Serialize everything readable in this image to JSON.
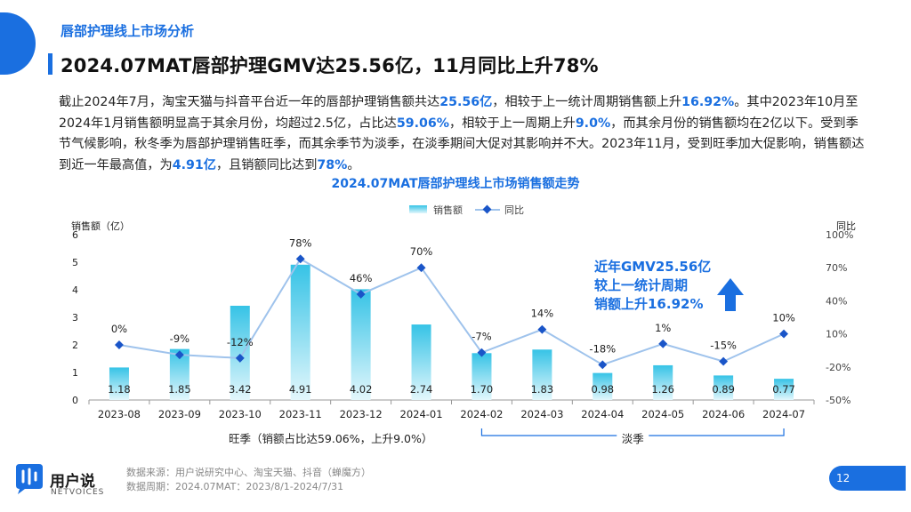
{
  "header": {
    "section_label": "唇部护理线上市场分析",
    "headline": "2024.07MAT唇部护理GMV达25.56亿，11月同比上升78%"
  },
  "paragraph": [
    {
      "t": "截止2024年7月，淘宝天猫与抖音平台近一年的唇部护理销售额共达",
      "h": false
    },
    {
      "t": "25.56亿",
      "h": true
    },
    {
      "t": "，相较于上一统计周期销售额上升",
      "h": false
    },
    {
      "t": "16.92%",
      "h": true
    },
    {
      "t": "。其中2023年10月至2024年1月销售额明显高于其余月份，均超过2.5亿，占比达",
      "h": false
    },
    {
      "t": "59.06%",
      "h": true
    },
    {
      "t": "，相较于上一周期上升",
      "h": false
    },
    {
      "t": "9.0%",
      "h": true
    },
    {
      "t": "，而其余月份的销售额均在2亿以下。受到季节气候影响，秋冬季为唇部护理销售旺季，而其余季节为淡季，在淡季期间大促对其影响并不大。2023年11月，受到旺季加大促影响，销售额达到近一年最高值，为",
      "h": false
    },
    {
      "t": "4.91亿",
      "h": true
    },
    {
      "t": "，且销额同比达到",
      "h": false
    },
    {
      "t": "78%",
      "h": true
    },
    {
      "t": "。",
      "h": false
    }
  ],
  "chart_data": {
    "type": "bar",
    "title": "2024.07MAT唇部护理线上市场销售额走势",
    "categories": [
      "2023-08",
      "2023-09",
      "2023-10",
      "2023-11",
      "2023-12",
      "2024-01",
      "2024-02",
      "2024-03",
      "2024-04",
      "2024-05",
      "2024-06",
      "2024-07"
    ],
    "series": [
      {
        "name": "销售额",
        "type": "bar",
        "axis": "left",
        "values": [
          1.18,
          1.85,
          3.42,
          4.91,
          4.02,
          2.74,
          1.7,
          1.83,
          0.98,
          1.26,
          0.89,
          0.77
        ],
        "labels": [
          "1.18",
          "1.85",
          "3.42",
          "4.91",
          "4.02",
          "2.74",
          "1.70",
          "1.83",
          "0.98",
          "1.26",
          "0.89",
          "0.77"
        ]
      },
      {
        "name": "同比",
        "type": "line",
        "axis": "right",
        "values": [
          0,
          -9,
          -12,
          78,
          46,
          70,
          -7,
          14,
          -18,
          1,
          -15,
          10
        ],
        "labels": [
          "0%",
          "-9%",
          "-12%",
          "78%",
          "46%",
          "70%",
          "-7%",
          "14%",
          "-18%",
          "1%",
          "-15%",
          "10%"
        ]
      }
    ],
    "ylabel_left": "销售额（亿）",
    "ylabel_right": "同比",
    "ylim_left": [
      0,
      6
    ],
    "yticks_left": [
      "0",
      "1",
      "2",
      "3",
      "4",
      "5",
      "6"
    ],
    "ylim_right": [
      -50,
      100
    ],
    "yticks_right": [
      "-50%",
      "-20%",
      "10%",
      "40%",
      "70%",
      "100%"
    ],
    "yticks_right_values": [
      -50,
      -20,
      10,
      40,
      70,
      100
    ],
    "legend": "top-center",
    "grid": false,
    "annotations": [
      {
        "text": "旺季（销额占比达59.06%，上升9.0%）",
        "from": "2023-10",
        "to": "2024-01"
      },
      {
        "text": "淡季",
        "from": "2024-02",
        "to": "2024-07"
      }
    ],
    "callout": [
      "近年GMV25.56亿",
      "较上一统计周期",
      "销额上升16.92%"
    ]
  },
  "footer": {
    "logo_main": "用户说",
    "logo_sub": "NETVOICES",
    "source_line1": "数据来源：用户说研究中心、淘宝天猫、抖音（蝉魔方）",
    "source_line2": "数据周期：2024.07MAT：2023/8/1-2024/7/31",
    "page_number": "12"
  },
  "colors": {
    "accent": "#1a6fe0",
    "bar_top": "#36c3e6",
    "bar_bottom": "#e3f7fc",
    "line": "#9fc3ec",
    "marker": "#1a55c8"
  }
}
